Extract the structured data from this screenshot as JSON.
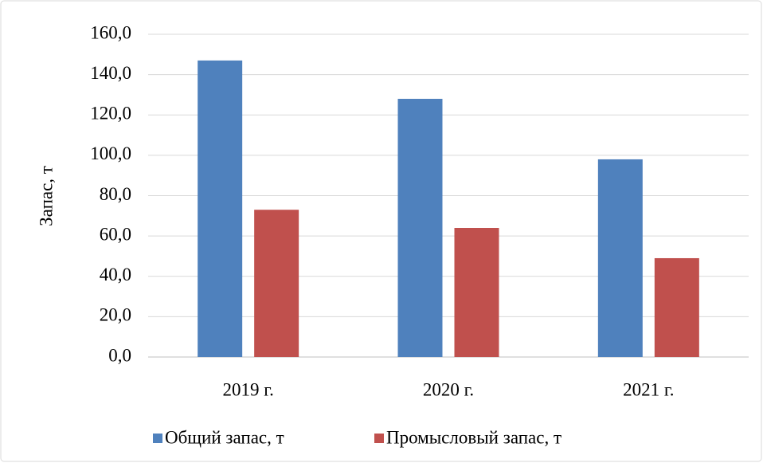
{
  "chart_data": {
    "type": "bar",
    "ylabel": "Запас, т",
    "categories": [
      "2019 г.",
      "2020 г.",
      "2021 г."
    ],
    "series": [
      {
        "name": "Общий запас, т",
        "color": "#4f81bd",
        "values": [
          147,
          128,
          98
        ]
      },
      {
        "name": "Промысловый запас, т",
        "color": "#c0504d",
        "values": [
          73,
          64,
          49
        ]
      }
    ],
    "ylim": [
      0,
      160
    ],
    "yticks": [
      {
        "value": 0,
        "label": "0,0"
      },
      {
        "value": 20,
        "label": "20,0"
      },
      {
        "value": 40,
        "label": "40,0"
      },
      {
        "value": 60,
        "label": "60,0"
      },
      {
        "value": 80,
        "label": "80,0"
      },
      {
        "value": 100,
        "label": "100,0"
      },
      {
        "value": 120,
        "label": "120,0"
      },
      {
        "value": 140,
        "label": "140,0"
      },
      {
        "value": 160,
        "label": "160,0"
      }
    ],
    "grid": true,
    "legend": "bottom"
  }
}
